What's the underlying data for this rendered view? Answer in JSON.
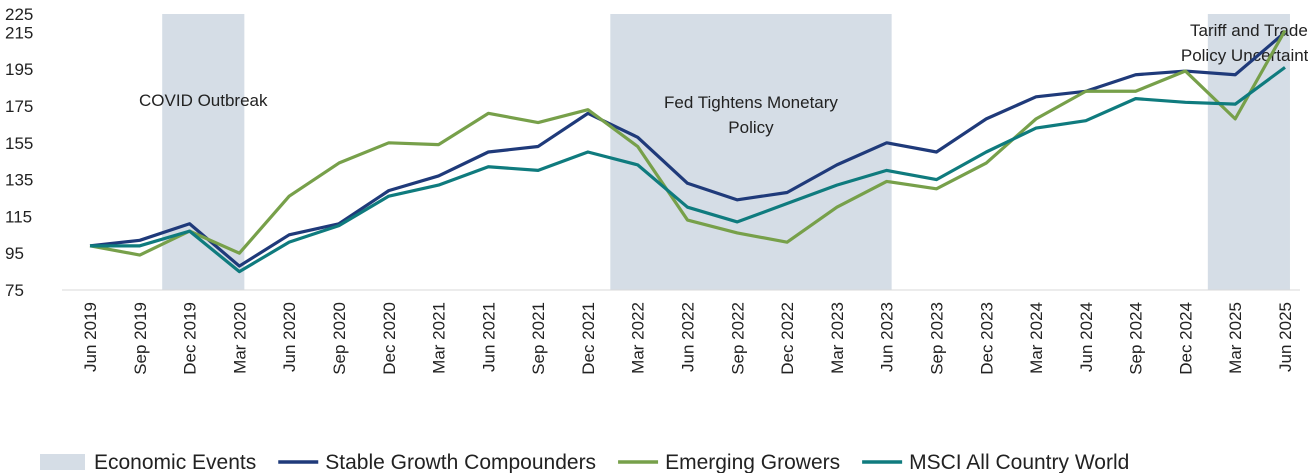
{
  "chart_data": {
    "type": "line",
    "categories": [
      "Jun 2019",
      "Sep 2019",
      "Dec 2019",
      "Mar 2020",
      "Jun 2020",
      "Sep 2020",
      "Dec 2020",
      "Mar 2021",
      "Jun 2021",
      "Sep 2021",
      "Dec 2021",
      "Mar 2022",
      "Jun 2022",
      "Sep 2022",
      "Dec 2022",
      "Mar 2023",
      "Jun 2023",
      "Sep 2023",
      "Dec 2023",
      "Mar 2024",
      "Jun 2024",
      "Sep 2024",
      "Dec 2024",
      "Mar 2025",
      "Jun 2025"
    ],
    "series": [
      {
        "name": "Stable Growth Compounders",
        "color": "#1f3a7a",
        "values": [
          99,
          102,
          111,
          88,
          105,
          111,
          129,
          137,
          150,
          153,
          171,
          158,
          133,
          124,
          128,
          143,
          155,
          150,
          168,
          180,
          183,
          192,
          194,
          192,
          215
        ]
      },
      {
        "name": "Emerging Growers",
        "color": "#77a04a",
        "values": [
          99,
          94,
          107,
          95,
          126,
          144,
          155,
          154,
          171,
          166,
          173,
          153,
          113,
          106,
          101,
          120,
          134,
          130,
          144,
          168,
          183,
          183,
          194,
          168,
          216
        ]
      },
      {
        "name": "MSCI All Country World",
        "color": "#0f7b7e",
        "values": [
          99,
          99,
          107,
          85,
          101,
          110,
          126,
          132,
          142,
          140,
          150,
          143,
          120,
          112,
          122,
          132,
          140,
          135,
          150,
          163,
          167,
          179,
          177,
          176,
          196
        ]
      }
    ],
    "events": {
      "name": "Economic Events",
      "color": "#d5dde6",
      "spans": [
        {
          "label": [
            "COVID Outbreak"
          ],
          "start": "Dec 2019",
          "end": "Mar 2020"
        },
        {
          "label": [
            "Fed Tightens Monetary",
            "Policy"
          ],
          "start": "Mar 2022",
          "end": "Jun 2023"
        },
        {
          "label": [
            "Tariff and Trade",
            "Policy Uncertainty"
          ],
          "start": "Mar 2025",
          "end": "Jun 2025"
        }
      ]
    },
    "ylim": [
      75,
      225
    ],
    "yticks": [
      75,
      95,
      115,
      135,
      155,
      175,
      195,
      215,
      225
    ]
  }
}
